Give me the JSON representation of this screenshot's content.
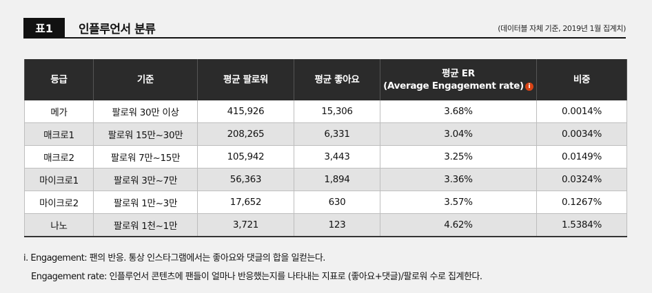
{
  "header": {
    "badge": "표1",
    "title": "인플루언서 분류",
    "note": "(데이터블 자체 기준, 2019년 1월 집계치)"
  },
  "table": {
    "columns": [
      "등급",
      "기준",
      "평균 팔로워",
      "평균 좋아요",
      "평균 ER",
      "비중"
    ],
    "er_subtitle": "(Average Engagement rate)",
    "er_icon": "info-icon",
    "er_icon_label": "i",
    "rows": [
      [
        "메가",
        "팔로워 30만 이상",
        "415,926",
        "15,306",
        "3.68%",
        "0.0014%"
      ],
      [
        "매크로1",
        "팔로워 15만~30만",
        "208,265",
        "6,331",
        "3.04%",
        "0.0034%"
      ],
      [
        "매크로2",
        "팔로워 7만~15만",
        "105,942",
        "3,443",
        "3.25%",
        "0.0149%"
      ],
      [
        "마이크로1",
        "팔로워 3만~7만",
        "56,363",
        "1,894",
        "3.36%",
        "0.0324%"
      ],
      [
        "마이크로2",
        "팔로워 1만~3만",
        "17,652",
        "630",
        "3.57%",
        "0.1267%"
      ],
      [
        "나노",
        "팔로워 1천~1만",
        "3,721",
        "123",
        "4.62%",
        "1.5384%"
      ]
    ]
  },
  "footnotes": {
    "line1": "i. Engagement: 팬의 반응. 통상 인스타그램에서는 좋아요와 댓글의 합을 일컫는다.",
    "line2": "Engagement rate: 인플루언서 콘텐츠에 팬들이 얼마나 반응했는지를 나타내는 지표로 (좋아요+댓글)/팔로워 수로 집계한다."
  }
}
